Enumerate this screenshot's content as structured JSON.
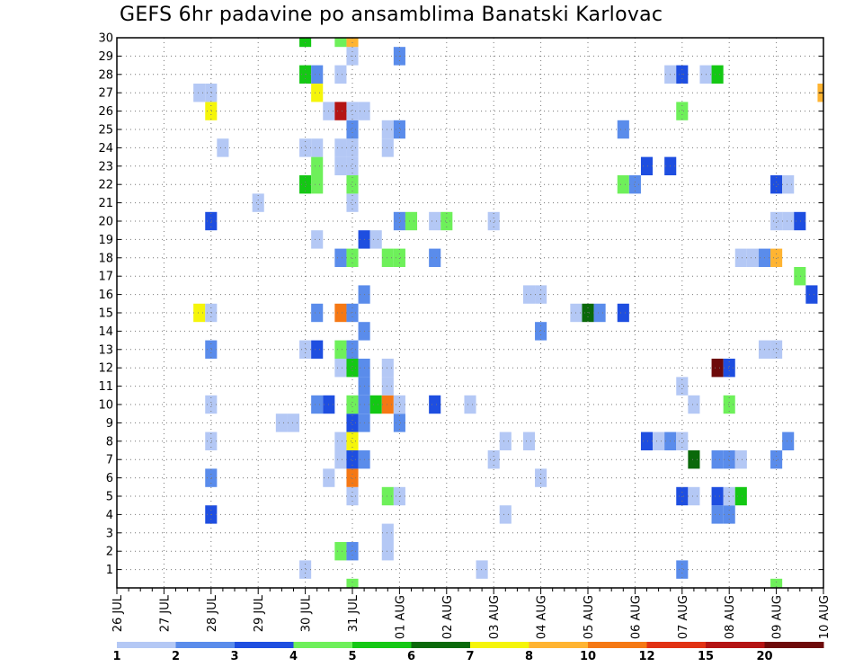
{
  "chart_data": {
    "type": "heatmap",
    "title": "GEFS 6hr padavine po ansamblima Banatski Karlovac",
    "x_tick_labels": [
      "26 JUL",
      "27 JUL",
      "28 JUL",
      "29 JUL",
      "30 JUL",
      "31 JUL",
      "01 AUG",
      "02 AUG",
      "03 AUG",
      "04 AUG",
      "05 AUG",
      "06 AUG",
      "07 AUG",
      "08 AUG",
      "09 AUG",
      "10 AUG"
    ],
    "y_tick_labels": [
      "1",
      "2",
      "3",
      "4",
      "5",
      "6",
      "7",
      "8",
      "9",
      "10",
      "11",
      "12",
      "13",
      "14",
      "15",
      "16",
      "17",
      "18",
      "19",
      "20",
      "21",
      "22",
      "23",
      "24",
      "25",
      "26",
      "27",
      "28",
      "29",
      "30"
    ],
    "x_unit": "6h steps from 26 JUL 00",
    "x_range": [
      0,
      60
    ],
    "y_range": [
      0,
      30
    ],
    "grid": true,
    "legend": {
      "position": "bottom",
      "labels": [
        "1",
        "2",
        "3",
        "4",
        "5",
        "6",
        "7",
        "8",
        "10",
        "12",
        "15",
        "20"
      ],
      "colors": [
        "#b4c8f5",
        "#5a8ceb",
        "#1e4ee0",
        "#6ef05a",
        "#14c814",
        "#0a690a",
        "#f5f50a",
        "#ffb432",
        "#f57814",
        "#e13214",
        "#b41414",
        "#6e0a0a"
      ]
    },
    "colors": [
      "#b4c8f5",
      "#5a8ceb",
      "#1e4ee0",
      "#6ef05a",
      "#14c814",
      "#0a690a",
      "#f5f50a",
      "#ffb432",
      "#f57814",
      "#e13214",
      "#b41414",
      "#6e0a0a"
    ],
    "points_note": "each point: [x step, member, color class index 0-11]",
    "points": [
      [
        16,
        1,
        0
      ],
      [
        31,
        1,
        0
      ],
      [
        48,
        1,
        1
      ],
      [
        19,
        2,
        3
      ],
      [
        20,
        2,
        1
      ],
      [
        23,
        2,
        0
      ],
      [
        23,
        3,
        0
      ],
      [
        8,
        4,
        2
      ],
      [
        33,
        4,
        0
      ],
      [
        51,
        4,
        1
      ],
      [
        52,
        4,
        1
      ],
      [
        20,
        5,
        0
      ],
      [
        23,
        5,
        3
      ],
      [
        24,
        5,
        0
      ],
      [
        48,
        5,
        2
      ],
      [
        49,
        5,
        0
      ],
      [
        51,
        5,
        2
      ],
      [
        52,
        5,
        0
      ],
      [
        53,
        5,
        4
      ],
      [
        8,
        6,
        1
      ],
      [
        18,
        6,
        0
      ],
      [
        20,
        6,
        8
      ],
      [
        36,
        6,
        0
      ],
      [
        19,
        7,
        0
      ],
      [
        20,
        7,
        2
      ],
      [
        21,
        7,
        1
      ],
      [
        32,
        7,
        0
      ],
      [
        49,
        7,
        5
      ],
      [
        51,
        7,
        1
      ],
      [
        52,
        7,
        1
      ],
      [
        53,
        7,
        0
      ],
      [
        56,
        7,
        1
      ],
      [
        8,
        8,
        0
      ],
      [
        19,
        8,
        0
      ],
      [
        20,
        8,
        6
      ],
      [
        33,
        8,
        0
      ],
      [
        35,
        8,
        0
      ],
      [
        45,
        8,
        2
      ],
      [
        46,
        8,
        0
      ],
      [
        47,
        8,
        1
      ],
      [
        48,
        8,
        0
      ],
      [
        57,
        8,
        1
      ],
      [
        14,
        9,
        0
      ],
      [
        15,
        9,
        0
      ],
      [
        20,
        9,
        2
      ],
      [
        21,
        9,
        1
      ],
      [
        24,
        9,
        1
      ],
      [
        8,
        10,
        0
      ],
      [
        17,
        10,
        1
      ],
      [
        18,
        10,
        2
      ],
      [
        20,
        10,
        3
      ],
      [
        21,
        10,
        1
      ],
      [
        22,
        10,
        4
      ],
      [
        23,
        10,
        8
      ],
      [
        24,
        10,
        0
      ],
      [
        27,
        10,
        2
      ],
      [
        30,
        10,
        0
      ],
      [
        49,
        10,
        0
      ],
      [
        52,
        10,
        3
      ],
      [
        21,
        11,
        1
      ],
      [
        23,
        11,
        0
      ],
      [
        48,
        11,
        0
      ],
      [
        19,
        12,
        0
      ],
      [
        20,
        12,
        4
      ],
      [
        21,
        12,
        1
      ],
      [
        23,
        12,
        0
      ],
      [
        51,
        12,
        11
      ],
      [
        52,
        12,
        2
      ],
      [
        8,
        13,
        1
      ],
      [
        16,
        13,
        0
      ],
      [
        17,
        13,
        2
      ],
      [
        19,
        13,
        3
      ],
      [
        20,
        13,
        1
      ],
      [
        55,
        13,
        0
      ],
      [
        56,
        13,
        0
      ],
      [
        21,
        14,
        1
      ],
      [
        36,
        14,
        1
      ],
      [
        7,
        15,
        6
      ],
      [
        8,
        15,
        0
      ],
      [
        17,
        15,
        1
      ],
      [
        19,
        15,
        8
      ],
      [
        20,
        15,
        1
      ],
      [
        39,
        15,
        0
      ],
      [
        40,
        15,
        5
      ],
      [
        41,
        15,
        1
      ],
      [
        43,
        15,
        2
      ],
      [
        21,
        16,
        1
      ],
      [
        35,
        16,
        0
      ],
      [
        36,
        16,
        0
      ],
      [
        59,
        16,
        2
      ],
      [
        58,
        17,
        3
      ],
      [
        19,
        18,
        1
      ],
      [
        20,
        18,
        3
      ],
      [
        23,
        18,
        3
      ],
      [
        24,
        18,
        3
      ],
      [
        27,
        18,
        1
      ],
      [
        53,
        18,
        0
      ],
      [
        54,
        18,
        0
      ],
      [
        55,
        18,
        1
      ],
      [
        56,
        18,
        7
      ],
      [
        17,
        19,
        0
      ],
      [
        21,
        19,
        2
      ],
      [
        22,
        19,
        0
      ],
      [
        8,
        20,
        2
      ],
      [
        24,
        20,
        1
      ],
      [
        25,
        20,
        3
      ],
      [
        27,
        20,
        0
      ],
      [
        28,
        20,
        3
      ],
      [
        32,
        20,
        0
      ],
      [
        56,
        20,
        0
      ],
      [
        57,
        20,
        0
      ],
      [
        58,
        20,
        2
      ],
      [
        12,
        21,
        0
      ],
      [
        20,
        21,
        0
      ],
      [
        16,
        22,
        4
      ],
      [
        17,
        22,
        3
      ],
      [
        20,
        22,
        3
      ],
      [
        43,
        22,
        3
      ],
      [
        44,
        22,
        1
      ],
      [
        56,
        22,
        2
      ],
      [
        57,
        22,
        0
      ],
      [
        17,
        23,
        3
      ],
      [
        19,
        23,
        0
      ],
      [
        20,
        23,
        0
      ],
      [
        45,
        23,
        2
      ],
      [
        47,
        23,
        2
      ],
      [
        9,
        24,
        0
      ],
      [
        16,
        24,
        0
      ],
      [
        17,
        24,
        0
      ],
      [
        19,
        24,
        0
      ],
      [
        20,
        24,
        0
      ],
      [
        23,
        24,
        0
      ],
      [
        20,
        25,
        1
      ],
      [
        23,
        25,
        0
      ],
      [
        24,
        25,
        1
      ],
      [
        43,
        25,
        1
      ],
      [
        8,
        26,
        6
      ],
      [
        18,
        26,
        0
      ],
      [
        19,
        26,
        10
      ],
      [
        20,
        26,
        0
      ],
      [
        21,
        26,
        0
      ],
      [
        48,
        26,
        3
      ],
      [
        7,
        27,
        0
      ],
      [
        8,
        27,
        0
      ],
      [
        17,
        27,
        6
      ],
      [
        60,
        27,
        7
      ],
      [
        16,
        28,
        4
      ],
      [
        17,
        28,
        1
      ],
      [
        19,
        28,
        0
      ],
      [
        47,
        28,
        0
      ],
      [
        48,
        28,
        2
      ],
      [
        50,
        28,
        0
      ],
      [
        51,
        28,
        4
      ],
      [
        20,
        29,
        0
      ],
      [
        24,
        29,
        1
      ],
      [
        16,
        30,
        4
      ],
      [
        19,
        30,
        3
      ],
      [
        20,
        30,
        7
      ],
      [
        20,
        0,
        3
      ],
      [
        56,
        0,
        3
      ]
    ]
  }
}
